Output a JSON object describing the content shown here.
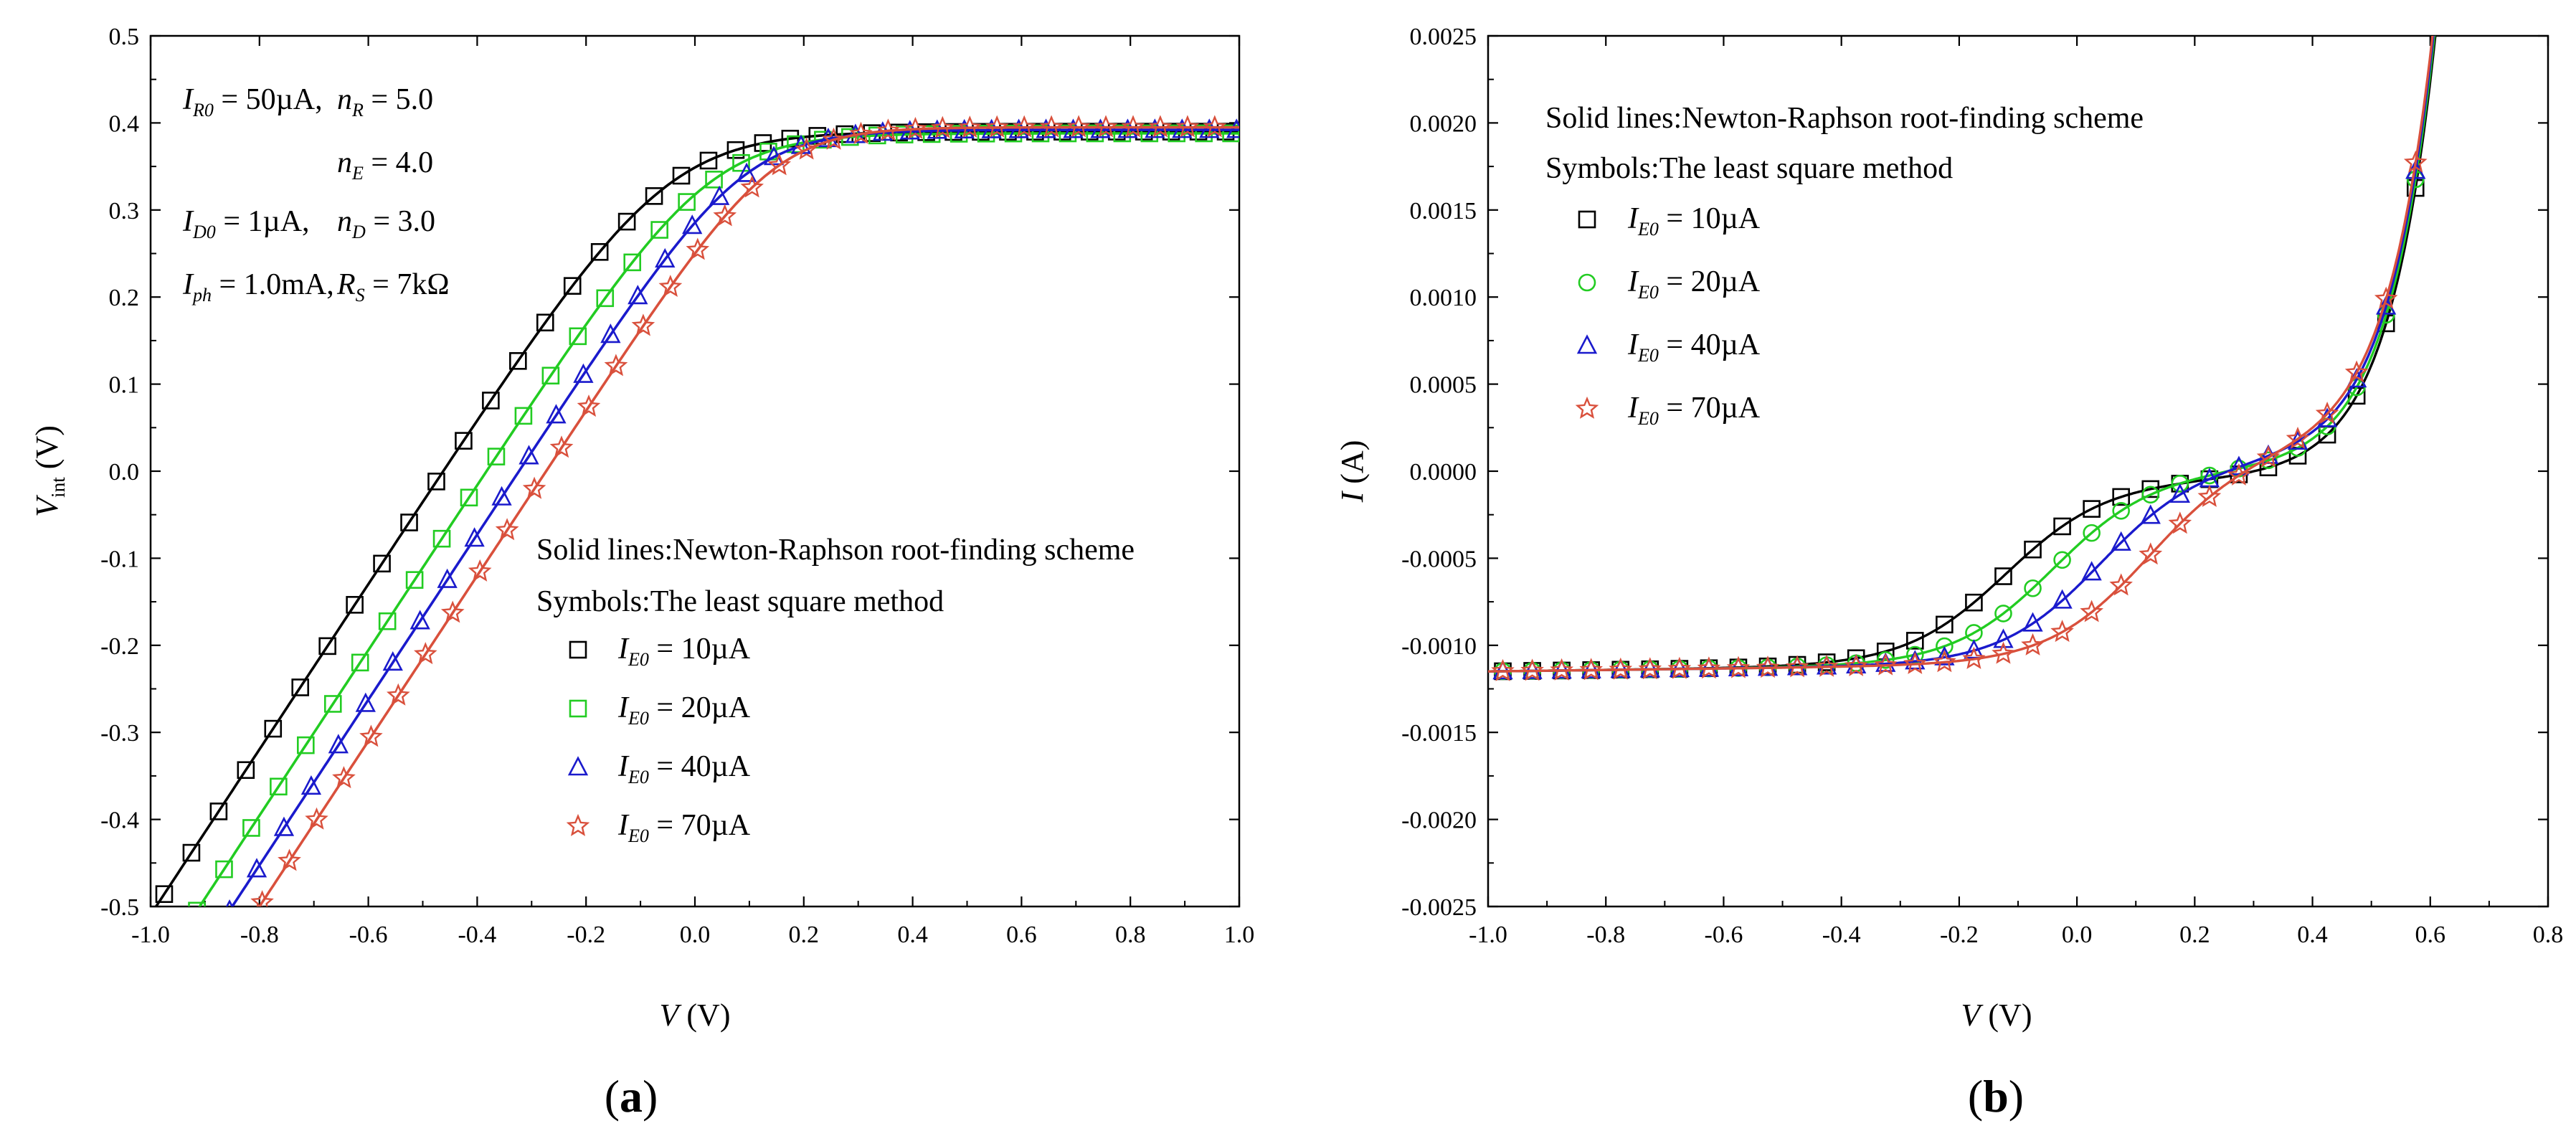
{
  "chart_data": [
    {
      "panel": "a",
      "panel_label": "(a)",
      "panel_label_parts": [
        "(",
        "a",
        ")"
      ],
      "type": "line",
      "xlabel": "V (V)",
      "xlabel_parts": [
        "V",
        " (V)"
      ],
      "ylabel": "V_int (V)",
      "ylabel_parts": [
        "V",
        "int",
        " (V)"
      ],
      "xlim": [
        -1.0,
        1.0
      ],
      "ylim": [
        -0.5,
        0.5
      ],
      "xticks": [
        -1.0,
        -0.8,
        -0.6,
        -0.4,
        -0.2,
        0.0,
        0.2,
        0.4,
        0.6,
        0.8,
        1.0
      ],
      "xtick_labels": [
        "-1.0",
        "-0.8",
        "-0.6",
        "-0.4",
        "-0.2",
        "0.0",
        "0.2",
        "0.4",
        "0.6",
        "0.8",
        "1.0"
      ],
      "yticks": [
        -0.5,
        -0.4,
        -0.3,
        -0.2,
        -0.1,
        0.0,
        0.1,
        0.2,
        0.3,
        0.4,
        0.5
      ],
      "ytick_labels": [
        "-0.5",
        "-0.4",
        "-0.3",
        "-0.2",
        "-0.1",
        "0.0",
        "0.1",
        "0.2",
        "0.3",
        "0.4",
        "0.5"
      ],
      "params": {
        "line1": {
          "a_sym": "I",
          "a_sub": "R0",
          "a_val": " = 50µA,",
          "b_sym": "n",
          "b_sub": "R",
          "b_val": " = 5.0"
        },
        "line2": {
          "b_sym": "n",
          "b_sub": "E",
          "b_val": " = 4.0"
        },
        "line3": {
          "a_sym": "I",
          "a_sub": "D0",
          "a_val": " = 1µA,",
          "b_sym": "n",
          "b_sub": "D",
          "b_val": " = 3.0"
        },
        "line4": {
          "a_sym": "I",
          "a_sub": "ph",
          "a_val": " = 1.0mA,",
          "b_sym": "R",
          "b_sub": "S",
          "b_val": " = 7kΩ"
        }
      },
      "legend_title1": "Solid lines:Newton-Raphson root-finding scheme",
      "legend_title2": "Symbols:The least square method",
      "series": [
        {
          "name": "I_E0 = 10µA",
          "sym": "I",
          "sub": "E0",
          "val": " = 10µA",
          "color": "#000000",
          "marker": "square",
          "x0": -0.99,
          "sat": 0.39,
          "slope": 0.95,
          "k": 11,
          "sym_dx": 0.0
        },
        {
          "name": "I_E0 = 20µA",
          "sym": "I",
          "sub": "E0",
          "val": " = 20µA",
          "color": "#22cc22",
          "marker": "square",
          "x0": -0.91,
          "sat": 0.388,
          "slope": 0.95,
          "k": 12,
          "sym_dx": 0.0
        },
        {
          "name": "I_E0 = 40µA",
          "sym": "I",
          "sub": "E0",
          "val": " = 40µA",
          "color": "#1a1acc",
          "marker": "triangle",
          "x0": -0.85,
          "sat": 0.392,
          "slope": 0.95,
          "k": 13,
          "sym_dx": 0.0
        },
        {
          "name": "I_E0 = 70µA",
          "sym": "I",
          "sub": "E0",
          "val": " = 70µA",
          "color": "#d9503c",
          "marker": "star",
          "x0": -0.8,
          "sat": 0.395,
          "slope": 0.95,
          "k": 14,
          "sym_dx": 0.0
        }
      ]
    },
    {
      "panel": "b",
      "panel_label": "(b)",
      "panel_label_parts": [
        "(",
        "b",
        ")"
      ],
      "type": "line",
      "xlabel": "V (V)",
      "xlabel_parts": [
        "V",
        " (V)"
      ],
      "ylabel": "I (A)",
      "ylabel_parts": [
        "I",
        " (A)"
      ],
      "xlim": [
        -1.0,
        0.8
      ],
      "ylim": [
        -0.0025,
        0.0025
      ],
      "xticks": [
        -1.0,
        -0.8,
        -0.6,
        -0.4,
        -0.2,
        0.0,
        0.2,
        0.4,
        0.6,
        0.8
      ],
      "xtick_labels": [
        "-1.0",
        "-0.8",
        "-0.6",
        "-0.4",
        "-0.2",
        "0.0",
        "0.2",
        "0.4",
        "0.6",
        "0.8"
      ],
      "yticks": [
        -0.0025,
        -0.002,
        -0.0015,
        -0.001,
        -0.0005,
        0.0,
        0.0005,
        0.001,
        0.0015,
        0.002,
        0.0025
      ],
      "ytick_labels": [
        "-0.0025",
        "-0.0020",
        "-0.0015",
        "-0.0010",
        "-0.0005",
        "0.0000",
        "0.0005",
        "0.0010",
        "0.0015",
        "0.0020",
        "0.0025"
      ],
      "legend_title1": "Solid lines:Newton-Raphson root-finding scheme",
      "legend_title2": "Symbols:The least square method",
      "series": [
        {
          "name": "I_E0 = 10µA",
          "sym": "I",
          "sub": "E0",
          "val": " = 10µA",
          "color": "#000000",
          "marker": "square",
          "center": -0.12,
          "width": 0.085,
          "plateau": -0.0001
        },
        {
          "name": "I_E0 = 20µA",
          "sym": "I",
          "sub": "E0",
          "val": " = 20µA",
          "color": "#22cc22",
          "marker": "circle",
          "center": -0.04,
          "width": 0.085,
          "plateau": -5e-05
        },
        {
          "name": "I_E0 = 40µA",
          "sym": "I",
          "sub": "E0",
          "val": " = 40µA",
          "color": "#1a1acc",
          "marker": "triangle",
          "center": 0.04,
          "width": 0.085,
          "plateau": 0.0
        },
        {
          "name": "I_E0 = 70µA",
          "sym": "I",
          "sub": "E0",
          "val": " = 70µA",
          "color": "#d9503c",
          "marker": "star",
          "center": 0.12,
          "width": 0.085,
          "plateau": 5e-05
        }
      ]
    }
  ]
}
